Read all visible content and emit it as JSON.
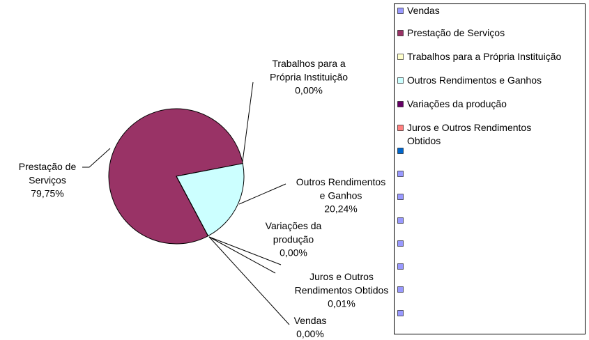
{
  "chart_data": {
    "type": "pie",
    "categories": [
      "Vendas",
      "Prestação de Serviços",
      "Trabalhos para a Própria Instituição",
      "Outros Rendimentos e Ganhos",
      "Variações da produção",
      "Juros e Outros Rendimentos Obtidos",
      null,
      null,
      null,
      null,
      null,
      null,
      null,
      null
    ],
    "values": [
      0.0,
      79.75,
      0.0,
      20.24,
      0.0,
      0.01,
      null,
      null,
      null,
      null,
      null,
      null,
      null,
      null
    ],
    "value_labels": [
      "0,00%",
      "79,75%",
      "0,00%",
      "20,24%",
      "0,00%",
      "0,01%",
      null,
      null,
      null,
      null,
      null,
      null,
      null,
      null
    ],
    "colors": [
      "#9999ff",
      "#993366",
      "#ffffcc",
      "#ccffff",
      "#660066",
      "#ff8080",
      "#0066cc",
      "#9999ff",
      "#9999ff",
      "#9999ff",
      "#9999ff",
      "#9999ff",
      "#9999ff",
      "#9999ff"
    ],
    "legend": "right"
  }
}
